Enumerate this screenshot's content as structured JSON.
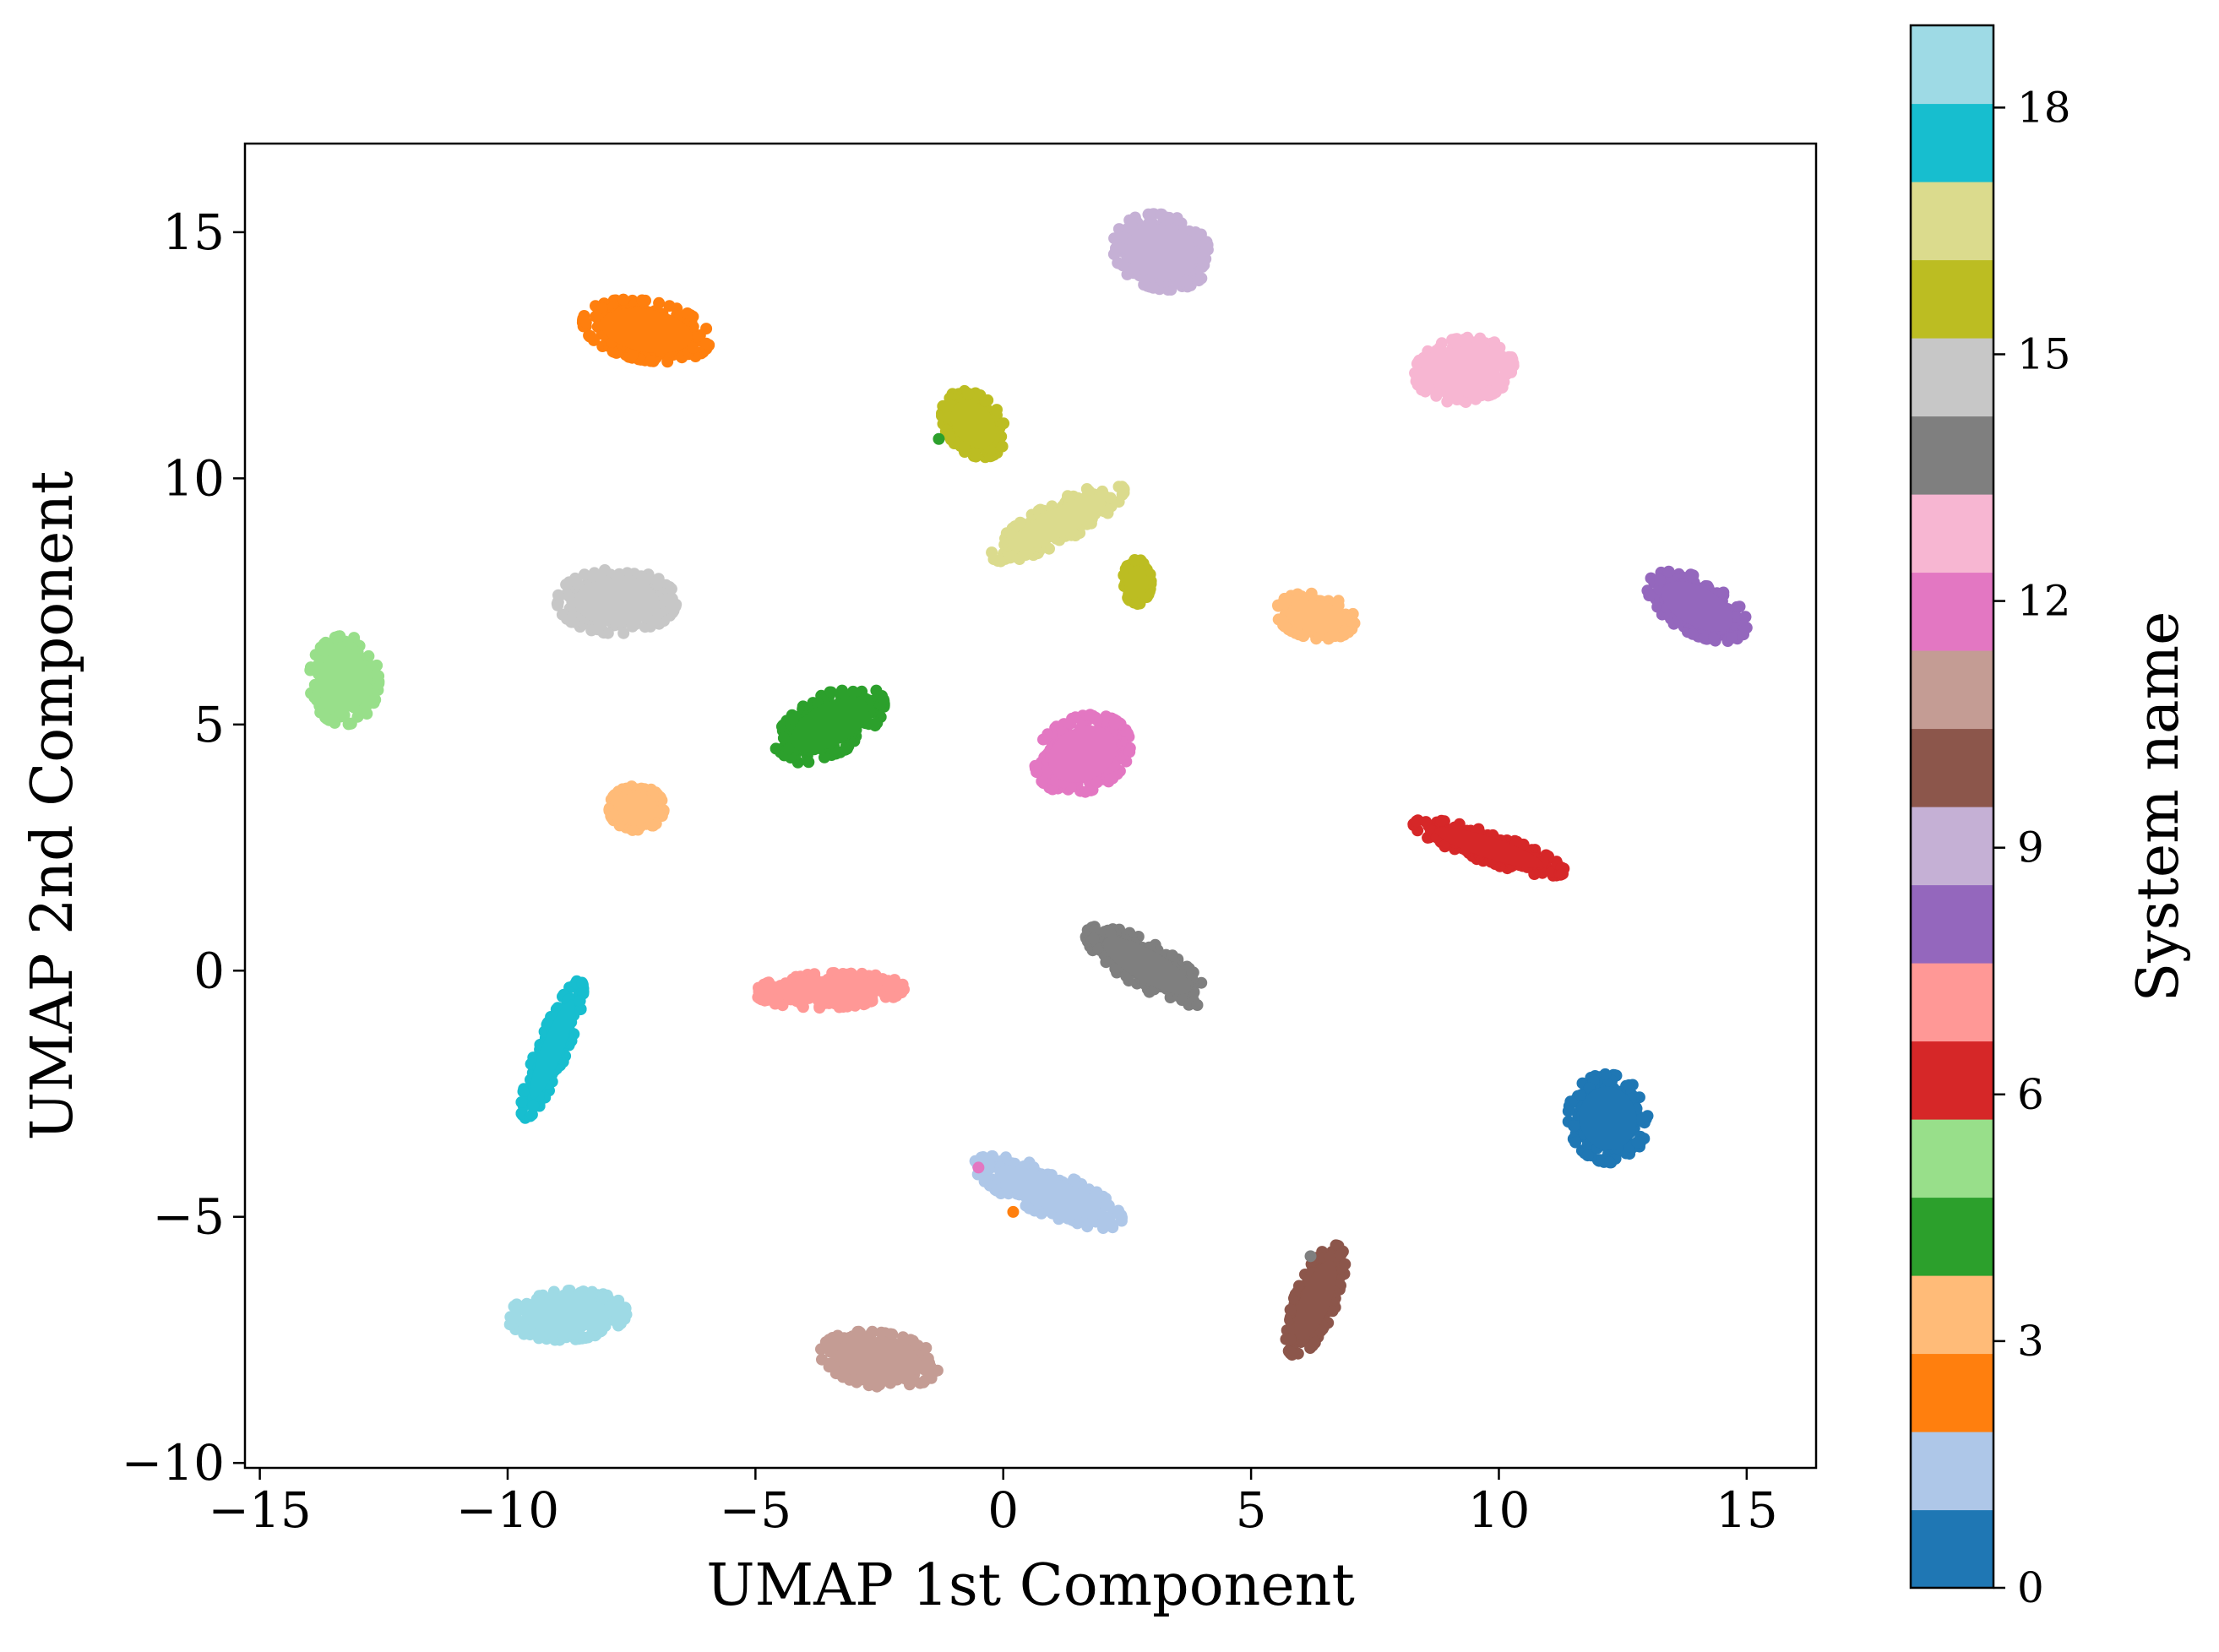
{
  "chart_data": {
    "type": "scatter",
    "xlabel": "UMAP 1st Component",
    "ylabel": "UMAP 2nd Component",
    "xlim": [
      -15.3,
      16.4
    ],
    "ylim": [
      -10.1,
      16.8
    ],
    "xticks": [
      -15,
      -10,
      -5,
      0,
      5,
      10,
      15
    ],
    "yticks": [
      -10,
      -5,
      0,
      5,
      10,
      15
    ],
    "xtick_labels": [
      "−15",
      "−10",
      "−5",
      "0",
      "5",
      "10",
      "15"
    ],
    "ytick_labels": [
      "−10",
      "−5",
      "0",
      "5",
      "10",
      "15"
    ],
    "grid": false,
    "legend": "none",
    "colorbar": {
      "label": "System name",
      "range": [
        0,
        19
      ],
      "ticks": [
        0,
        3,
        6,
        9,
        12,
        15,
        18
      ],
      "tick_labels": [
        "0",
        "3",
        "6",
        "9",
        "12",
        "15",
        "18"
      ],
      "colors": [
        "#1f77b4",
        "#aec7e8",
        "#ff7f0e",
        "#ffbb78",
        "#2ca02c",
        "#98df8a",
        "#d62728",
        "#ff9896",
        "#9467bd",
        "#c5b0d5",
        "#8c564b",
        "#c49c94",
        "#e377c2",
        "#f7b6d2",
        "#7f7f7f",
        "#c7c7c7",
        "#bcbd22",
        "#dbdb8d",
        "#17becf",
        "#9edae5"
      ]
    },
    "clusters": [
      {
        "class": 0,
        "cx": 12.2,
        "cy": -3.0,
        "rx": 0.8,
        "ry": 0.9,
        "angle": 10
      },
      {
        "class": 1,
        "cx": 0.9,
        "cy": -4.5,
        "rx": 1.6,
        "ry": 0.45,
        "angle": -22
      },
      {
        "class": 2,
        "cx": -7.2,
        "cy": 13.0,
        "rx": 1.3,
        "ry": 0.6,
        "angle": -10
      },
      {
        "class": 3,
        "cx": -7.4,
        "cy": 3.3,
        "rx": 0.55,
        "ry": 0.45,
        "angle": 0
      },
      {
        "class": 3,
        "cx": 6.3,
        "cy": 7.2,
        "rx": 0.8,
        "ry": 0.45,
        "angle": -10
      },
      {
        "class": 4,
        "cx": -3.5,
        "cy": 5.0,
        "rx": 1.2,
        "ry": 0.6,
        "angle": 28
      },
      {
        "class": 5,
        "cx": -13.3,
        "cy": 5.9,
        "rx": 0.7,
        "ry": 0.9,
        "angle": 0
      },
      {
        "class": 6,
        "cx": 9.8,
        "cy": 2.5,
        "rx": 1.6,
        "ry": 0.3,
        "angle": -18
      },
      {
        "class": 7,
        "cx": -3.5,
        "cy": -0.4,
        "rx": 1.5,
        "ry": 0.35,
        "angle": 2
      },
      {
        "class": 8,
        "cx": 14.0,
        "cy": 7.4,
        "rx": 1.1,
        "ry": 0.55,
        "angle": -28
      },
      {
        "class": 9,
        "cx": 3.2,
        "cy": 14.6,
        "rx": 1.0,
        "ry": 0.75,
        "angle": -15
      },
      {
        "class": 10,
        "cx": 6.3,
        "cy": -6.7,
        "rx": 1.2,
        "ry": 0.42,
        "angle": 68
      },
      {
        "class": 11,
        "cx": -2.5,
        "cy": -7.9,
        "rx": 1.2,
        "ry": 0.55,
        "angle": -8
      },
      {
        "class": 12,
        "cx": 1.6,
        "cy": 4.4,
        "rx": 1.0,
        "ry": 0.75,
        "angle": 25
      },
      {
        "class": 13,
        "cx": 9.3,
        "cy": 12.2,
        "rx": 1.0,
        "ry": 0.65,
        "angle": 8
      },
      {
        "class": 14,
        "cx": 2.9,
        "cy": 0.1,
        "rx": 1.4,
        "ry": 0.45,
        "angle": -30
      },
      {
        "class": 15,
        "cx": -7.8,
        "cy": 7.5,
        "rx": 1.2,
        "ry": 0.65,
        "angle": 0
      },
      {
        "class": 16,
        "cx": -0.6,
        "cy": 11.1,
        "rx": 0.75,
        "ry": 0.55,
        "angle": -50
      },
      {
        "class": 16,
        "cx": 2.7,
        "cy": 7.9,
        "rx": 0.28,
        "ry": 0.45,
        "angle": 0
      },
      {
        "class": 17,
        "cx": 1.1,
        "cy": 9.1,
        "rx": 1.5,
        "ry": 0.4,
        "angle": 28
      },
      {
        "class": 18,
        "cx": -9.1,
        "cy": -1.6,
        "rx": 1.5,
        "ry": 0.3,
        "angle": 68
      },
      {
        "class": 19,
        "cx": -8.8,
        "cy": -7.0,
        "rx": 1.2,
        "ry": 0.5,
        "angle": 3
      }
    ],
    "outliers": [
      {
        "class": 4,
        "x": -1.3,
        "y": 10.8
      },
      {
        "class": 2,
        "x": 0.2,
        "y": -4.9
      },
      {
        "class": 14,
        "x": 6.2,
        "y": -5.8
      },
      {
        "class": 12,
        "x": -0.5,
        "y": -4.0
      }
    ]
  }
}
